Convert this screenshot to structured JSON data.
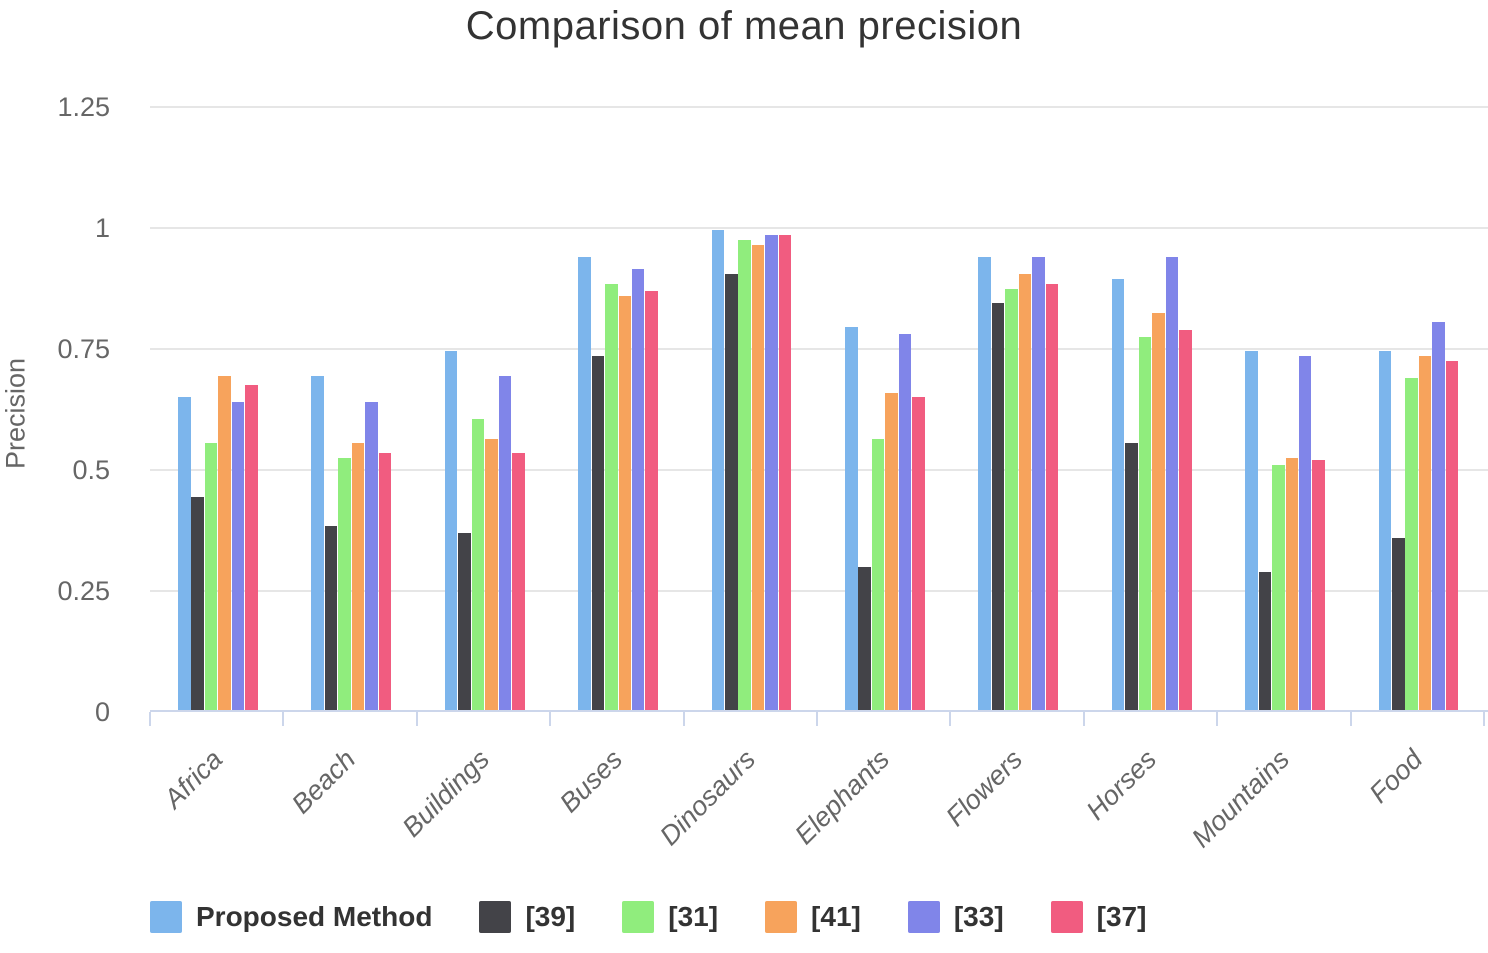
{
  "chart_data": {
    "type": "bar",
    "title": "Comparison of mean precision",
    "xlabel": "",
    "ylabel": "Precision",
    "ylim": [
      0,
      1.25
    ],
    "ytick_values": [
      0,
      0.25,
      0.5,
      0.75,
      1,
      1.25
    ],
    "ytick_labels": [
      "0",
      "0.25",
      "0.5",
      "0.75",
      "1",
      "1.25"
    ],
    "grid": true,
    "legend_position": "bottom",
    "categories": [
      "Africa",
      "Beach",
      "Buildings",
      "Buses",
      "Dinosaurs",
      "Elephants",
      "Flowers",
      "Horses",
      "Mountains",
      "Food"
    ],
    "series": [
      {
        "name": "Proposed Method",
        "color": "#7cb5ec",
        "values": [
          0.65,
          0.695,
          0.745,
          0.94,
          0.995,
          0.795,
          0.94,
          0.895,
          0.745,
          0.745
        ]
      },
      {
        "name": "[39]",
        "color": "#434348",
        "values": [
          0.445,
          0.385,
          0.37,
          0.735,
          0.905,
          0.3,
          0.845,
          0.555,
          0.29,
          0.36
        ]
      },
      {
        "name": "[31]",
        "color": "#90ed7d",
        "values": [
          0.555,
          0.525,
          0.605,
          0.885,
          0.975,
          0.565,
          0.875,
          0.775,
          0.51,
          0.69
        ]
      },
      {
        "name": "[41]",
        "color": "#f7a35c",
        "values": [
          0.695,
          0.555,
          0.565,
          0.86,
          0.965,
          0.66,
          0.905,
          0.825,
          0.525,
          0.735
        ]
      },
      {
        "name": "[33]",
        "color": "#8085e9",
        "values": [
          0.64,
          0.64,
          0.695,
          0.915,
          0.985,
          0.78,
          0.94,
          0.94,
          0.735,
          0.805
        ]
      },
      {
        "name": "[37]",
        "color": "#f15c80",
        "values": [
          0.675,
          0.535,
          0.535,
          0.87,
          0.985,
          0.65,
          0.885,
          0.79,
          0.52,
          0.725
        ]
      }
    ],
    "style_colors": {
      "gridline": "#e6e6e6",
      "axis_line": "#ccd6eb",
      "title_text": "#333333",
      "tick_text": "#666666",
      "legend_text": "#333333",
      "background": "#ffffff"
    }
  }
}
